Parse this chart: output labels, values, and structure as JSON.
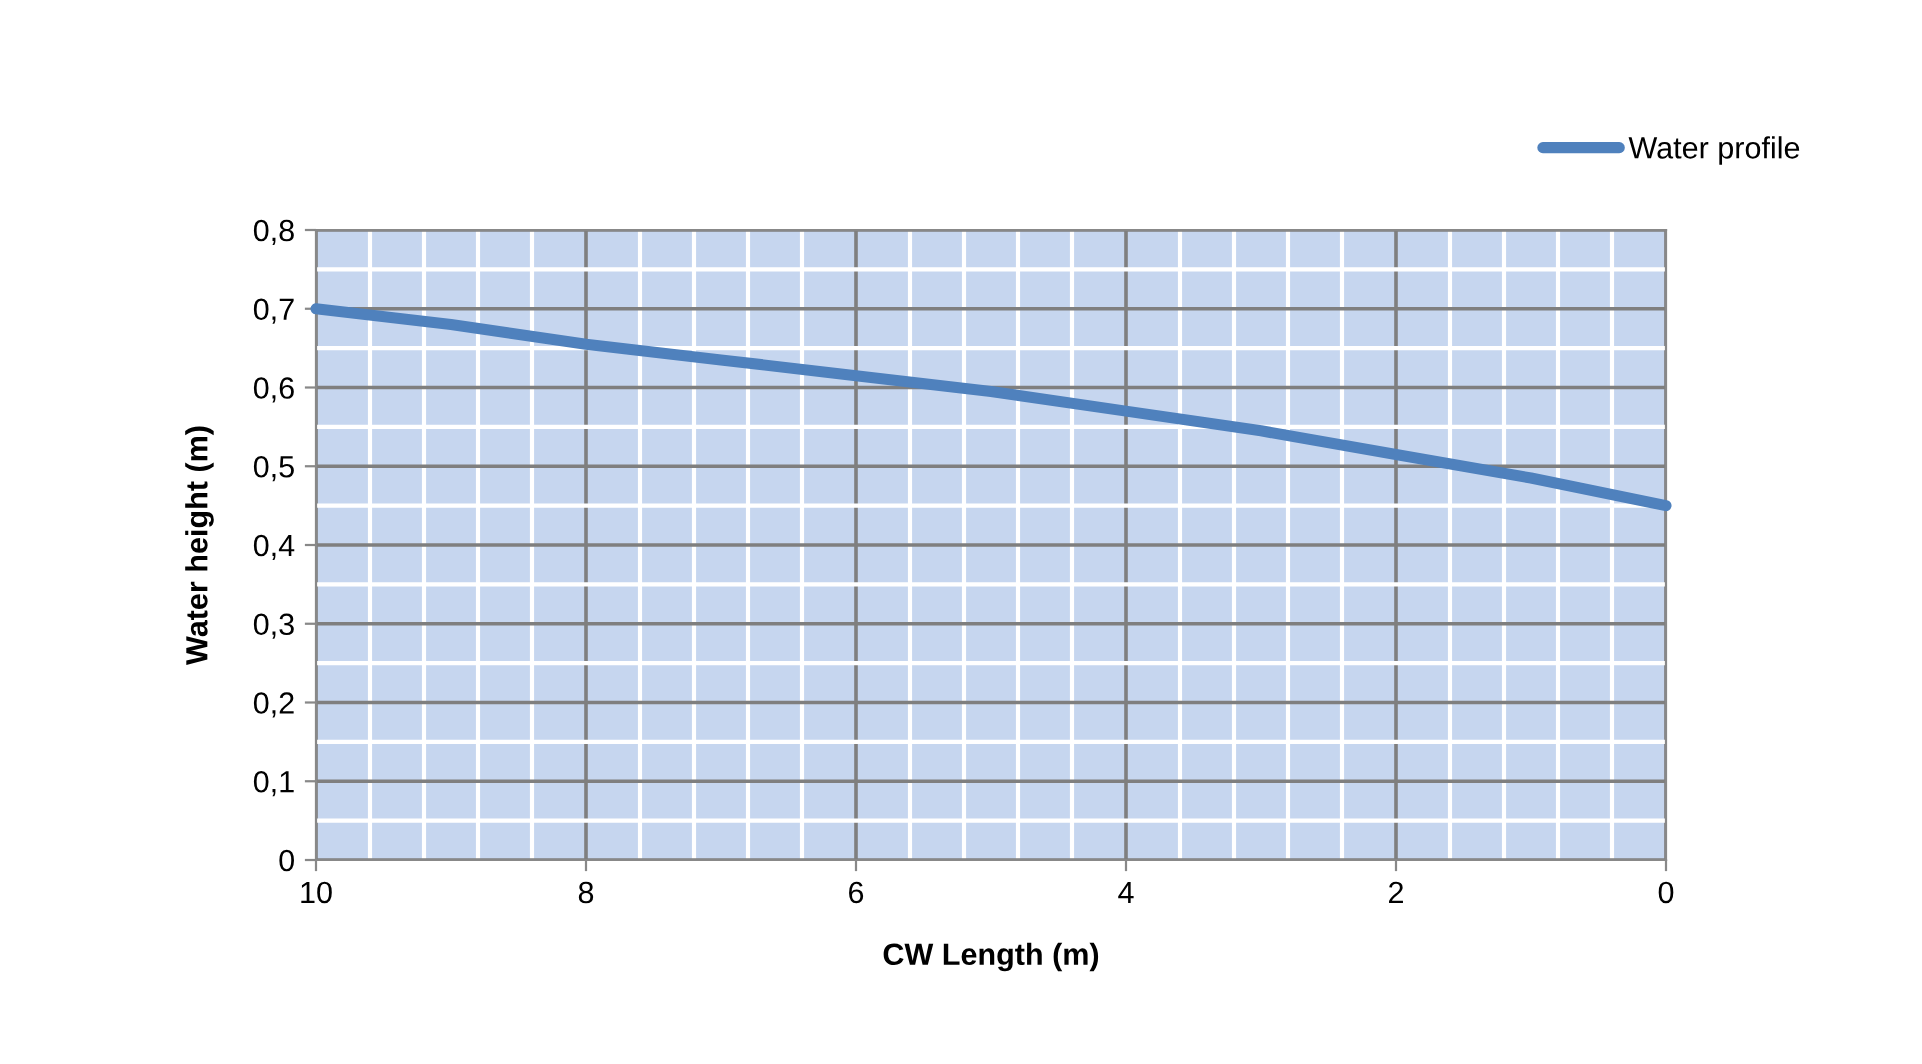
{
  "chart_data": {
    "type": "line",
    "xlabel": "CW Length (m)",
    "ylabel": "Water height (m)",
    "x": [
      10,
      9,
      8,
      7,
      6,
      5,
      4,
      3,
      2,
      1,
      0
    ],
    "series": [
      {
        "name": "Water profile",
        "color": "#4f81bd",
        "values": [
          0.7,
          0.68,
          0.655,
          0.635,
          0.615,
          0.595,
          0.57,
          0.545,
          0.515,
          0.485,
          0.45
        ]
      }
    ],
    "xlim": [
      10,
      0
    ],
    "xticks": [
      10,
      8,
      6,
      4,
      2,
      0
    ],
    "ylim": [
      0,
      0.8
    ],
    "yticks": [
      0,
      {
        "value": 0.1,
        "label": "0,1"
      },
      {
        "value": 0.2,
        "label": "0,2"
      },
      {
        "value": 0.3,
        "label": "0,3"
      },
      {
        "value": 0.4,
        "label": "0,4"
      },
      {
        "value": 0.5,
        "label": "0,5"
      },
      {
        "value": 0.6,
        "label": "0,6"
      },
      {
        "value": 0.7,
        "label": "0,7"
      },
      {
        "value": 0.8,
        "label": "0,8"
      }
    ],
    "grid": true,
    "legend": "top right",
    "marker": "none",
    "line_style": "solid"
  }
}
